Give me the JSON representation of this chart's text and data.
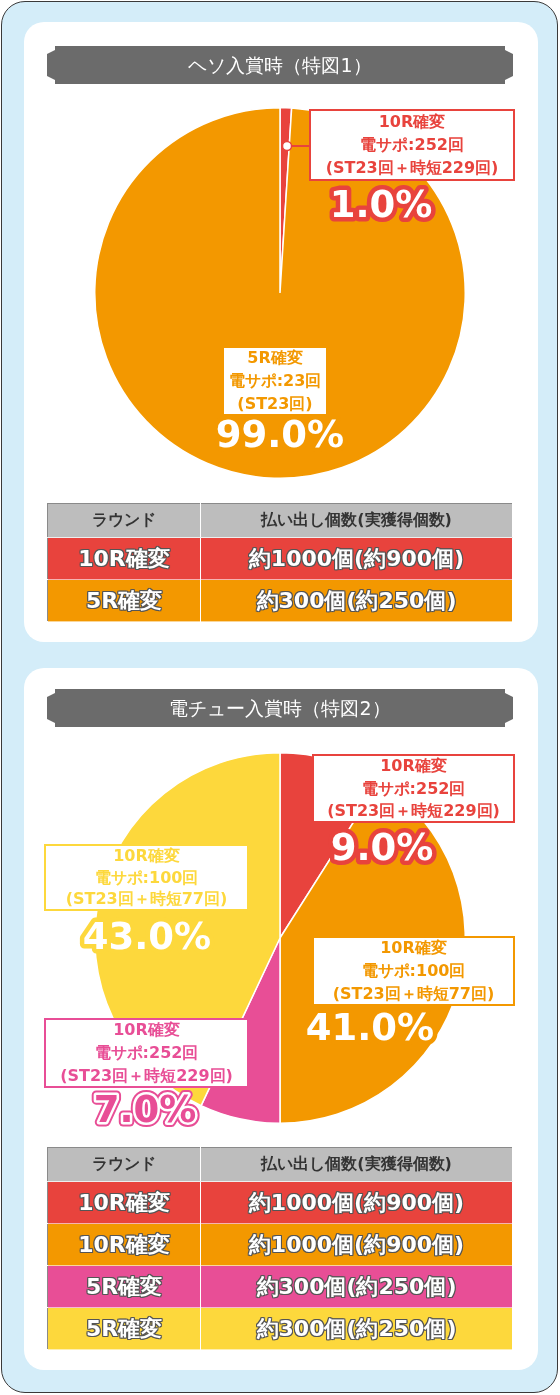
{
  "chart_data": [
    {
      "type": "pie",
      "title": "ヘソ入賞時（特図1）",
      "categories": [
        "10R確変電サポ:252回(ST23回＋時短229回)",
        "5R確変電サポ:23回(ST23回)"
      ],
      "values": [
        1.0,
        99.0
      ],
      "colors": [
        "#e8433d",
        "#f39800"
      ],
      "value_labels": [
        "1.0%",
        "99.0%"
      ]
    },
    {
      "type": "other",
      "xlabel": "ラウンド",
      "ylabel": "払い出し個数(実獲得個数)",
      "categories": [
        "10R確変",
        "5R確変"
      ],
      "cell_labels": [
        [
          "約1000個(約900個)"
        ],
        [
          "約300個(約250個)"
        ]
      ],
      "colors": [
        "#e8433d",
        "#f39800"
      ]
    },
    {
      "type": "pie",
      "title": "電チュー入賞時（特図2）",
      "categories": [
        "10R確変電サポ:252回(ST23回＋時短229回)",
        "10R確変電サポ:100回(ST23回＋時短77回)",
        "10R確変電サポ:252回(ST23回＋時短229回)",
        "10R確変電サポ:100回(ST23回＋時短77回)"
      ],
      "values": [
        9.0,
        41.0,
        7.0,
        43.0
      ],
      "colors": [
        "#e8433d",
        "#f39800",
        "#e84e96",
        "#fdd83c"
      ],
      "value_labels": [
        "9.0%",
        "41.0%",
        "7.0%",
        "43.0%"
      ]
    },
    {
      "type": "other",
      "xlabel": "ラウンド",
      "ylabel": "払い出し個数(実獲得個数)",
      "categories": [
        "10R確変",
        "10R確変",
        "5R確変",
        "5R確変"
      ],
      "cell_labels": [
        [
          "約1000個(約900個)"
        ],
        [
          "約1000個(約900個)"
        ],
        [
          "約300個(約250個)"
        ],
        [
          "約300個(約250個)"
        ]
      ],
      "colors": [
        "#e8433d",
        "#f39800",
        "#e84e96",
        "#fdd83c"
      ]
    }
  ]
}
